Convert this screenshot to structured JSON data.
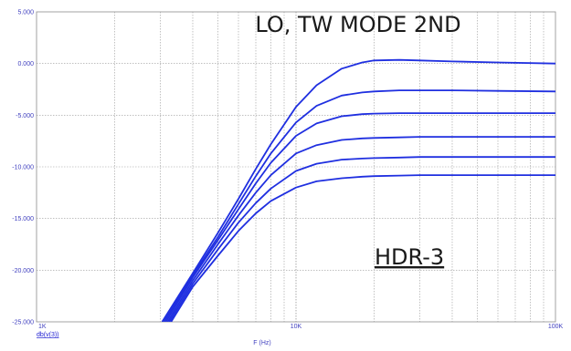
{
  "chart_data": {
    "type": "line",
    "title_lines": [
      "LO, TW MODE 2ND"
    ],
    "xlabel": "F (Hz)",
    "ylabel": "db(v(3))",
    "annotation": "HDR-3",
    "x_scale": "log",
    "xlim": [
      1000,
      100000
    ],
    "ylim": [
      -25,
      5
    ],
    "x_ticks": [
      {
        "value": 1000,
        "label": "1K"
      },
      {
        "value": 10000,
        "label": "10K"
      },
      {
        "value": 100000,
        "label": "100K"
      }
    ],
    "y_ticks": [
      {
        "value": 5,
        "label": "5.000"
      },
      {
        "value": 0,
        "label": "0.000"
      },
      {
        "value": -5,
        "label": "-5.000"
      },
      {
        "value": -10,
        "label": "-10.000"
      },
      {
        "value": -15,
        "label": "-15.000"
      },
      {
        "value": -20,
        "label": "-20.000"
      },
      {
        "value": -25,
        "label": "-25.000"
      }
    ],
    "grid": true,
    "series_color": "#1f2fe0",
    "series": [
      {
        "x": [
          3050,
          4000,
          5000,
          6000,
          7000,
          8000,
          10000,
          12000,
          15000,
          18000,
          20000,
          25000,
          30000,
          40000,
          60000,
          100000
        ],
        "y": [
          -25,
          -20.3,
          -16.4,
          -13.1,
          -10.2,
          -7.8,
          -4.2,
          -2.1,
          -0.5,
          0.1,
          0.3,
          0.35,
          0.3,
          0.2,
          0.1,
          0.0
        ]
      },
      {
        "x": [
          3100,
          4000,
          5000,
          6000,
          7000,
          8000,
          10000,
          12000,
          15000,
          18000,
          20000,
          25000,
          30000,
          40000,
          60000,
          100000
        ],
        "y": [
          -25,
          -20.5,
          -16.8,
          -13.6,
          -10.9,
          -8.7,
          -5.7,
          -4.1,
          -3.1,
          -2.8,
          -2.7,
          -2.6,
          -2.6,
          -2.6,
          -2.65,
          -2.7
        ]
      },
      {
        "x": [
          3150,
          4000,
          5000,
          6000,
          7000,
          8000,
          10000,
          12000,
          15000,
          18000,
          20000,
          25000,
          30000,
          40000,
          60000,
          100000
        ],
        "y": [
          -25,
          -20.7,
          -17.1,
          -14.1,
          -11.6,
          -9.6,
          -7.0,
          -5.8,
          -5.1,
          -4.9,
          -4.85,
          -4.8,
          -4.8,
          -4.8,
          -4.8,
          -4.8
        ]
      },
      {
        "x": [
          3200,
          4000,
          5000,
          6000,
          7000,
          8000,
          10000,
          12000,
          15000,
          18000,
          20000,
          25000,
          30000,
          40000,
          60000,
          100000
        ],
        "y": [
          -25,
          -21.0,
          -17.5,
          -14.7,
          -12.5,
          -10.8,
          -8.7,
          -7.9,
          -7.4,
          -7.25,
          -7.2,
          -7.15,
          -7.1,
          -7.1,
          -7.1,
          -7.1
        ]
      },
      {
        "x": [
          3250,
          4000,
          5000,
          6000,
          7000,
          8000,
          10000,
          12000,
          15000,
          18000,
          20000,
          25000,
          30000,
          40000,
          60000,
          100000
        ],
        "y": [
          -25,
          -21.3,
          -18.0,
          -15.4,
          -13.5,
          -12.1,
          -10.4,
          -9.7,
          -9.3,
          -9.2,
          -9.15,
          -9.1,
          -9.05,
          -9.05,
          -9.05,
          -9.05
        ]
      },
      {
        "x": [
          3300,
          4000,
          5000,
          6000,
          7000,
          8000,
          10000,
          12000,
          15000,
          18000,
          20000,
          25000,
          30000,
          40000,
          60000,
          100000
        ],
        "y": [
          -25,
          -21.6,
          -18.6,
          -16.2,
          -14.5,
          -13.3,
          -12.0,
          -11.4,
          -11.1,
          -10.95,
          -10.9,
          -10.85,
          -10.8,
          -10.8,
          -10.8,
          -10.8
        ]
      }
    ]
  }
}
